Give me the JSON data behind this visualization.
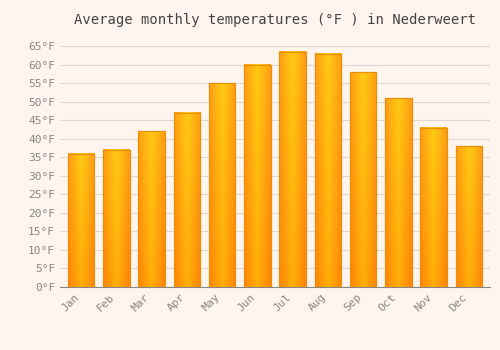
{
  "title": "Average monthly temperatures (°F ) in Nederweert",
  "months": [
    "Jan",
    "Feb",
    "Mar",
    "Apr",
    "May",
    "Jun",
    "Jul",
    "Aug",
    "Sep",
    "Oct",
    "Nov",
    "Dec"
  ],
  "values": [
    36,
    37,
    42,
    47,
    55,
    60,
    63.5,
    63,
    58,
    51,
    43,
    38
  ],
  "bar_color": "#FFA500",
  "bar_edge_color": "#E8900A",
  "background_color": "#FFF5EE",
  "plot_bg_color": "#FFF5EE",
  "grid_color": "#E0D8D0",
  "ylim": [
    0,
    68
  ],
  "yticks": [
    0,
    5,
    10,
    15,
    20,
    25,
    30,
    35,
    40,
    45,
    50,
    55,
    60,
    65
  ],
  "title_fontsize": 10,
  "tick_fontsize": 8,
  "font_family": "monospace",
  "tick_color": "#888880",
  "title_color": "#444444"
}
